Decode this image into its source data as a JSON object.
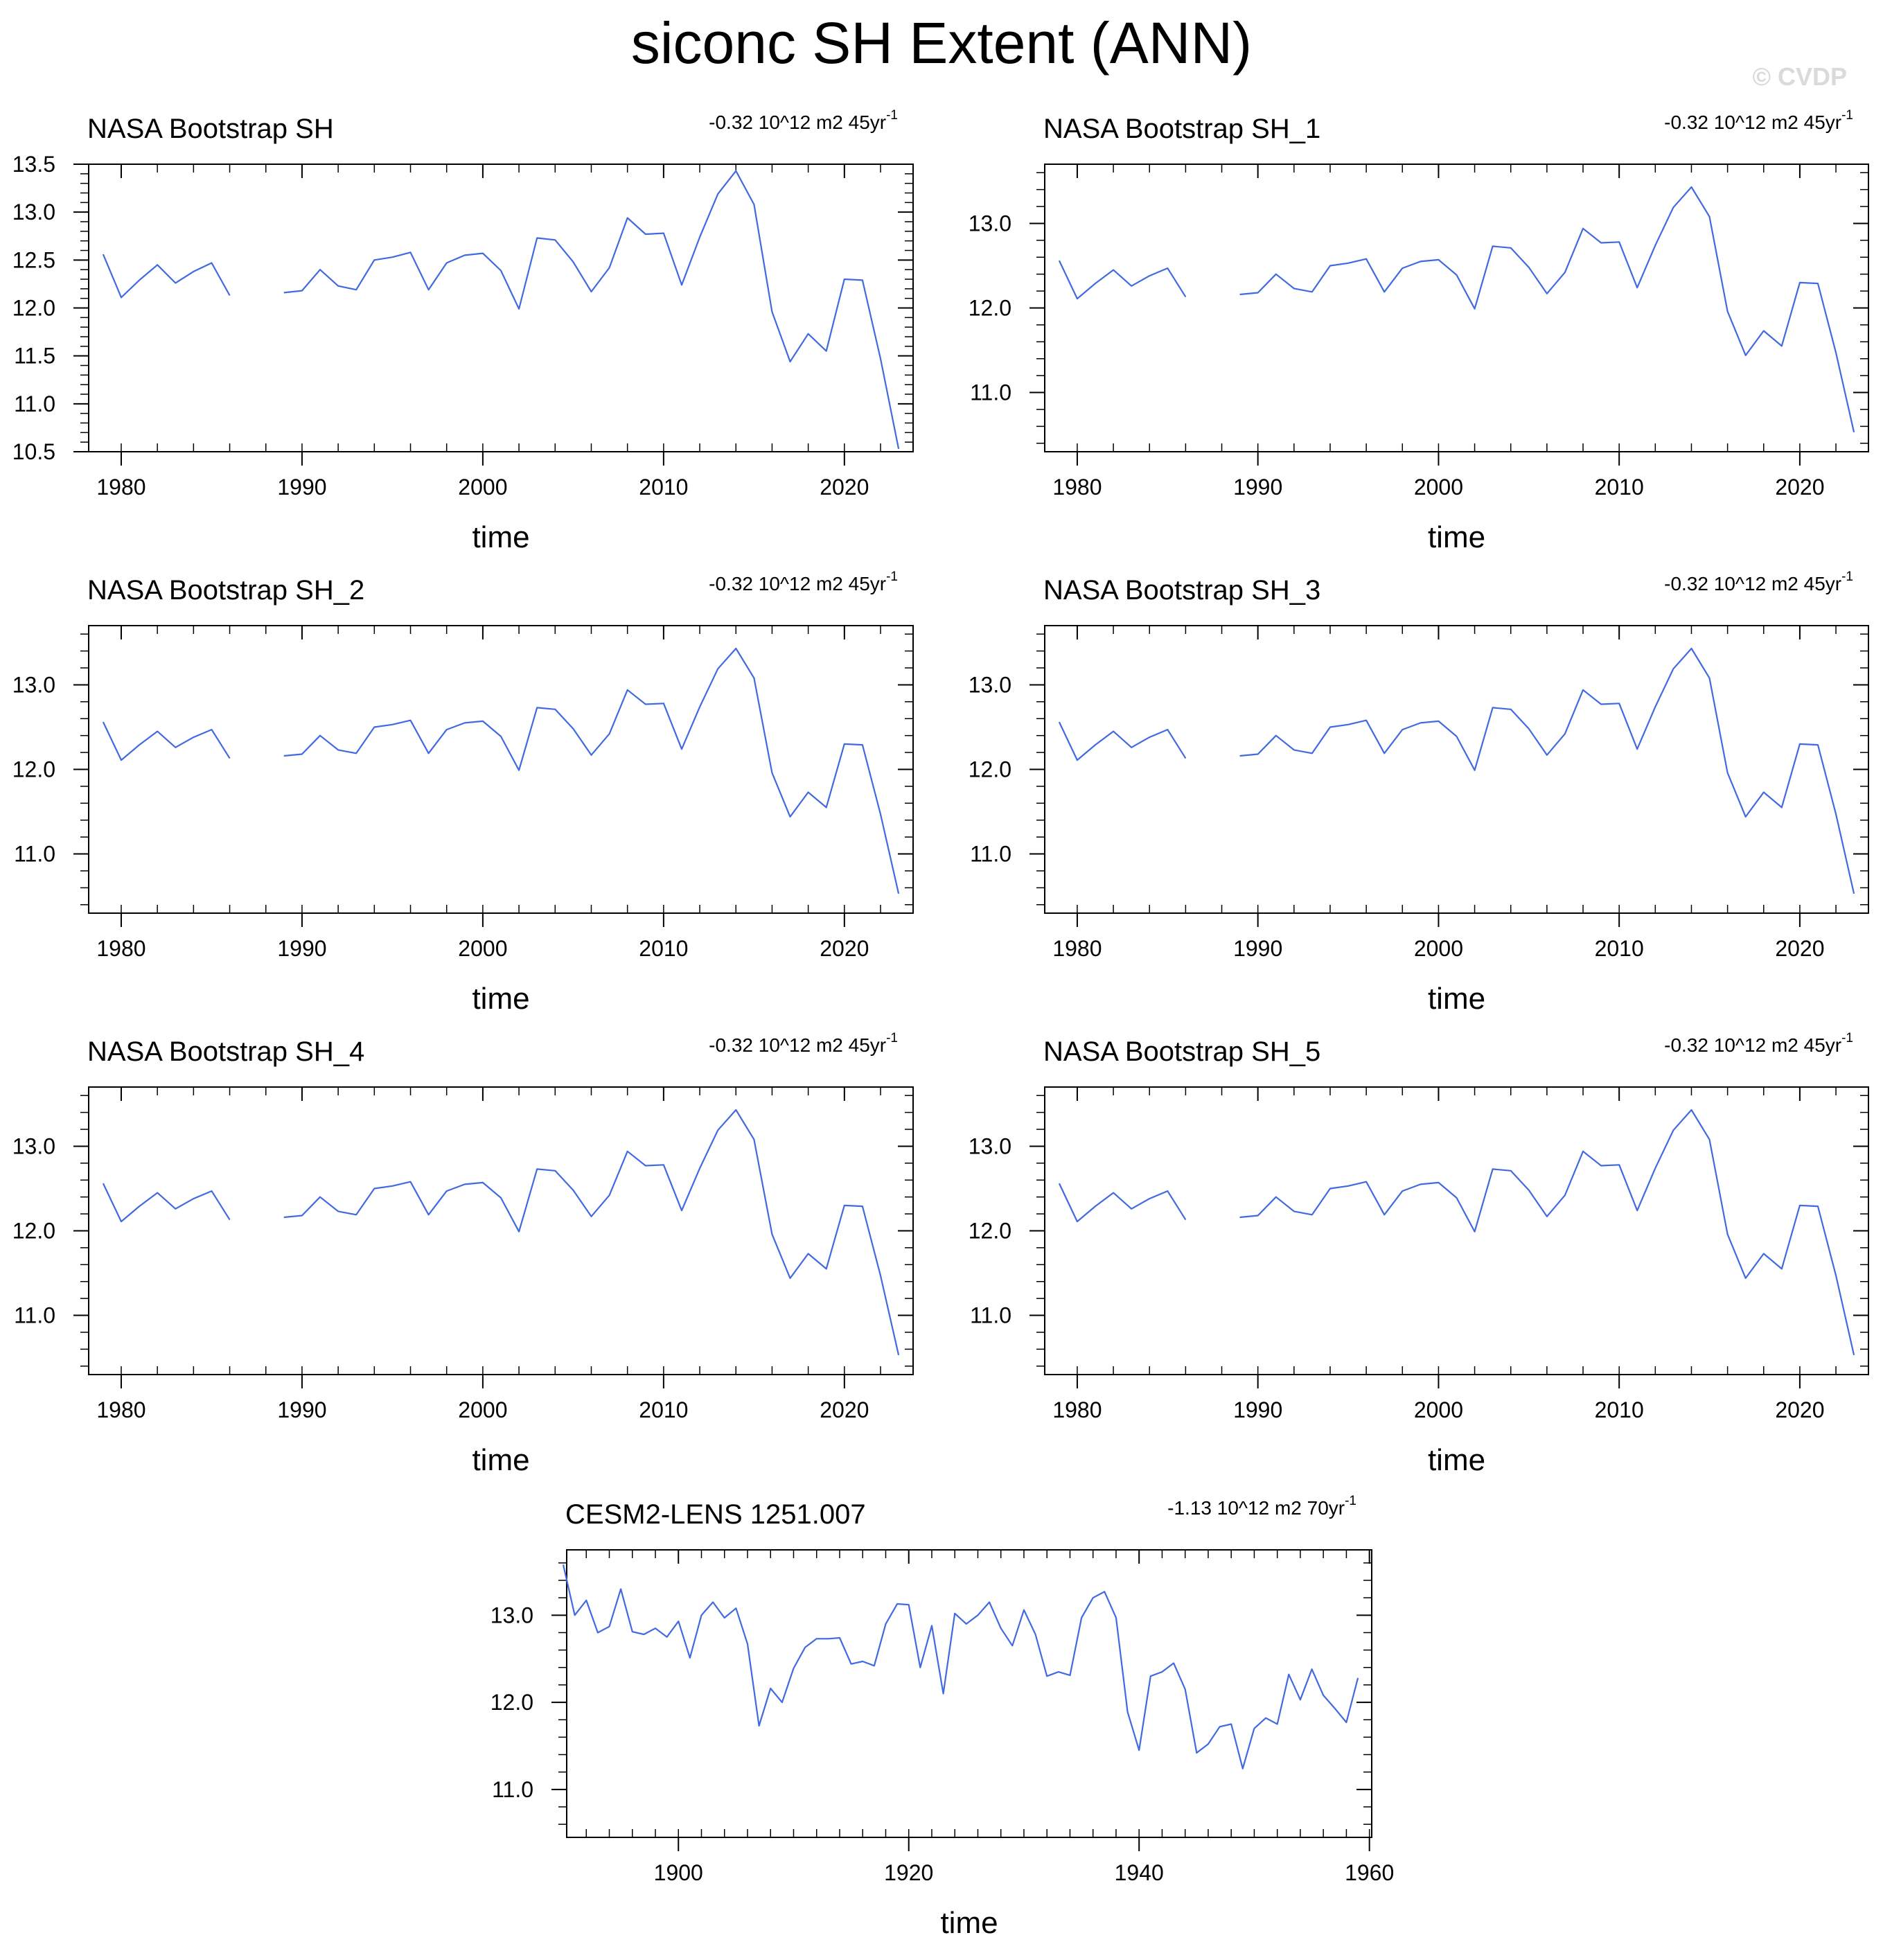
{
  "title": "siconc SH Extent (ANN)",
  "watermark": "© CVDP",
  "colors": {
    "line": "#4169e1",
    "frame": "#000000"
  },
  "chart_data": [
    {
      "type": "line",
      "title": "NASA Bootstrap SH",
      "trend_text": "-0.32 10^12 m2 45yr",
      "trend_sup": "-1",
      "xlabel": "time",
      "ylabel": "",
      "xlim": [
        1978.2,
        2023.8
      ],
      "ylim": [
        10.5,
        13.5
      ],
      "xticks": [
        1980,
        1990,
        2000,
        2010,
        2020
      ],
      "yticks": [
        10.5,
        11.0,
        11.5,
        12.0,
        12.5,
        13.0,
        13.5
      ],
      "ytick_labels": [
        "10.5",
        "11.0",
        "11.5",
        "12.0",
        "12.5",
        "13.0",
        "13.5"
      ],
      "x_minor": 2,
      "y_minor": 0.1,
      "x": [
        1979,
        1980,
        1981,
        1982,
        1983,
        1984,
        1985,
        1986,
        1987,
        1988,
        1989,
        1990,
        1991,
        1992,
        1993,
        1994,
        1995,
        1996,
        1997,
        1998,
        1999,
        2000,
        2001,
        2002,
        2003,
        2004,
        2005,
        2006,
        2007,
        2008,
        2009,
        2010,
        2011,
        2012,
        2013,
        2014,
        2015,
        2016,
        2017,
        2018,
        2019,
        2020,
        2021,
        2022,
        2023
      ],
      "y": [
        12.56,
        12.11,
        12.29,
        12.45,
        12.26,
        12.38,
        12.47,
        12.13,
        null,
        null,
        12.16,
        12.18,
        12.4,
        12.23,
        12.19,
        12.5,
        12.53,
        12.58,
        12.19,
        12.47,
        12.55,
        12.57,
        12.39,
        11.99,
        12.73,
        12.71,
        12.48,
        12.17,
        12.42,
        12.94,
        12.77,
        12.78,
        12.24,
        12.74,
        13.19,
        13.43,
        13.08,
        11.96,
        11.44,
        11.73,
        11.55,
        12.3,
        12.29,
        11.47,
        10.53
      ]
    },
    {
      "type": "line",
      "title": "NASA Bootstrap SH_1",
      "trend_text": "-0.32 10^12 m2 45yr",
      "trend_sup": "-1",
      "xlabel": "time",
      "ylabel": "",
      "xlim": [
        1978.2,
        2023.8
      ],
      "ylim": [
        10.3,
        13.7
      ],
      "xticks": [
        1980,
        1990,
        2000,
        2010,
        2020
      ],
      "yticks": [
        11.0,
        12.0,
        13.0
      ],
      "ytick_labels": [
        "11.0",
        "12.0",
        "13.0"
      ],
      "x_minor": 2,
      "y_minor": 0.2,
      "x": [
        1979,
        1980,
        1981,
        1982,
        1983,
        1984,
        1985,
        1986,
        1987,
        1988,
        1989,
        1990,
        1991,
        1992,
        1993,
        1994,
        1995,
        1996,
        1997,
        1998,
        1999,
        2000,
        2001,
        2002,
        2003,
        2004,
        2005,
        2006,
        2007,
        2008,
        2009,
        2010,
        2011,
        2012,
        2013,
        2014,
        2015,
        2016,
        2017,
        2018,
        2019,
        2020,
        2021,
        2022,
        2023
      ],
      "y": [
        12.56,
        12.11,
        12.29,
        12.45,
        12.26,
        12.38,
        12.47,
        12.13,
        null,
        null,
        12.16,
        12.18,
        12.4,
        12.23,
        12.19,
        12.5,
        12.53,
        12.58,
        12.19,
        12.47,
        12.55,
        12.57,
        12.39,
        11.99,
        12.73,
        12.71,
        12.48,
        12.17,
        12.42,
        12.94,
        12.77,
        12.78,
        12.24,
        12.74,
        13.19,
        13.43,
        13.08,
        11.96,
        11.44,
        11.73,
        11.55,
        12.3,
        12.29,
        11.47,
        10.53
      ]
    },
    {
      "type": "line",
      "title": "NASA Bootstrap SH_2",
      "trend_text": "-0.32 10^12 m2 45yr",
      "trend_sup": "-1",
      "xlabel": "time",
      "ylabel": "",
      "xlim": [
        1978.2,
        2023.8
      ],
      "ylim": [
        10.3,
        13.7
      ],
      "xticks": [
        1980,
        1990,
        2000,
        2010,
        2020
      ],
      "yticks": [
        11.0,
        12.0,
        13.0
      ],
      "ytick_labels": [
        "11.0",
        "12.0",
        "13.0"
      ],
      "x_minor": 2,
      "y_minor": 0.2,
      "x": [
        1979,
        1980,
        1981,
        1982,
        1983,
        1984,
        1985,
        1986,
        1987,
        1988,
        1989,
        1990,
        1991,
        1992,
        1993,
        1994,
        1995,
        1996,
        1997,
        1998,
        1999,
        2000,
        2001,
        2002,
        2003,
        2004,
        2005,
        2006,
        2007,
        2008,
        2009,
        2010,
        2011,
        2012,
        2013,
        2014,
        2015,
        2016,
        2017,
        2018,
        2019,
        2020,
        2021,
        2022,
        2023
      ],
      "y": [
        12.56,
        12.11,
        12.29,
        12.45,
        12.26,
        12.38,
        12.47,
        12.13,
        null,
        null,
        12.16,
        12.18,
        12.4,
        12.23,
        12.19,
        12.5,
        12.53,
        12.58,
        12.19,
        12.47,
        12.55,
        12.57,
        12.39,
        11.99,
        12.73,
        12.71,
        12.48,
        12.17,
        12.42,
        12.94,
        12.77,
        12.78,
        12.24,
        12.74,
        13.19,
        13.43,
        13.08,
        11.96,
        11.44,
        11.73,
        11.55,
        12.3,
        12.29,
        11.47,
        10.53
      ]
    },
    {
      "type": "line",
      "title": "NASA Bootstrap SH_3",
      "trend_text": "-0.32 10^12 m2 45yr",
      "trend_sup": "-1",
      "xlabel": "time",
      "ylabel": "",
      "xlim": [
        1978.2,
        2023.8
      ],
      "ylim": [
        10.3,
        13.7
      ],
      "xticks": [
        1980,
        1990,
        2000,
        2010,
        2020
      ],
      "yticks": [
        11.0,
        12.0,
        13.0
      ],
      "ytick_labels": [
        "11.0",
        "12.0",
        "13.0"
      ],
      "x_minor": 2,
      "y_minor": 0.2,
      "x": [
        1979,
        1980,
        1981,
        1982,
        1983,
        1984,
        1985,
        1986,
        1987,
        1988,
        1989,
        1990,
        1991,
        1992,
        1993,
        1994,
        1995,
        1996,
        1997,
        1998,
        1999,
        2000,
        2001,
        2002,
        2003,
        2004,
        2005,
        2006,
        2007,
        2008,
        2009,
        2010,
        2011,
        2012,
        2013,
        2014,
        2015,
        2016,
        2017,
        2018,
        2019,
        2020,
        2021,
        2022,
        2023
      ],
      "y": [
        12.56,
        12.11,
        12.29,
        12.45,
        12.26,
        12.38,
        12.47,
        12.13,
        null,
        null,
        12.16,
        12.18,
        12.4,
        12.23,
        12.19,
        12.5,
        12.53,
        12.58,
        12.19,
        12.47,
        12.55,
        12.57,
        12.39,
        11.99,
        12.73,
        12.71,
        12.48,
        12.17,
        12.42,
        12.94,
        12.77,
        12.78,
        12.24,
        12.74,
        13.19,
        13.43,
        13.08,
        11.96,
        11.44,
        11.73,
        11.55,
        12.3,
        12.29,
        11.47,
        10.53
      ]
    },
    {
      "type": "line",
      "title": "NASA Bootstrap SH_4",
      "trend_text": "-0.32 10^12 m2 45yr",
      "trend_sup": "-1",
      "xlabel": "time",
      "ylabel": "",
      "xlim": [
        1978.2,
        2023.8
      ],
      "ylim": [
        10.3,
        13.7
      ],
      "xticks": [
        1980,
        1990,
        2000,
        2010,
        2020
      ],
      "yticks": [
        11.0,
        12.0,
        13.0
      ],
      "ytick_labels": [
        "11.0",
        "12.0",
        "13.0"
      ],
      "x_minor": 2,
      "y_minor": 0.2,
      "x": [
        1979,
        1980,
        1981,
        1982,
        1983,
        1984,
        1985,
        1986,
        1987,
        1988,
        1989,
        1990,
        1991,
        1992,
        1993,
        1994,
        1995,
        1996,
        1997,
        1998,
        1999,
        2000,
        2001,
        2002,
        2003,
        2004,
        2005,
        2006,
        2007,
        2008,
        2009,
        2010,
        2011,
        2012,
        2013,
        2014,
        2015,
        2016,
        2017,
        2018,
        2019,
        2020,
        2021,
        2022,
        2023
      ],
      "y": [
        12.56,
        12.11,
        12.29,
        12.45,
        12.26,
        12.38,
        12.47,
        12.13,
        null,
        null,
        12.16,
        12.18,
        12.4,
        12.23,
        12.19,
        12.5,
        12.53,
        12.58,
        12.19,
        12.47,
        12.55,
        12.57,
        12.39,
        11.99,
        12.73,
        12.71,
        12.48,
        12.17,
        12.42,
        12.94,
        12.77,
        12.78,
        12.24,
        12.74,
        13.19,
        13.43,
        13.08,
        11.96,
        11.44,
        11.73,
        11.55,
        12.3,
        12.29,
        11.47,
        10.53
      ]
    },
    {
      "type": "line",
      "title": "NASA Bootstrap SH_5",
      "trend_text": "-0.32 10^12 m2 45yr",
      "trend_sup": "-1",
      "xlabel": "time",
      "ylabel": "",
      "xlim": [
        1978.2,
        2023.8
      ],
      "ylim": [
        10.3,
        13.7
      ],
      "xticks": [
        1980,
        1990,
        2000,
        2010,
        2020
      ],
      "yticks": [
        11.0,
        12.0,
        13.0
      ],
      "ytick_labels": [
        "11.0",
        "12.0",
        "13.0"
      ],
      "x_minor": 2,
      "y_minor": 0.2,
      "x": [
        1979,
        1980,
        1981,
        1982,
        1983,
        1984,
        1985,
        1986,
        1987,
        1988,
        1989,
        1990,
        1991,
        1992,
        1993,
        1994,
        1995,
        1996,
        1997,
        1998,
        1999,
        2000,
        2001,
        2002,
        2003,
        2004,
        2005,
        2006,
        2007,
        2008,
        2009,
        2010,
        2011,
        2012,
        2013,
        2014,
        2015,
        2016,
        2017,
        2018,
        2019,
        2020,
        2021,
        2022,
        2023
      ],
      "y": [
        12.56,
        12.11,
        12.29,
        12.45,
        12.26,
        12.38,
        12.47,
        12.13,
        null,
        null,
        12.16,
        12.18,
        12.4,
        12.23,
        12.19,
        12.5,
        12.53,
        12.58,
        12.19,
        12.47,
        12.55,
        12.57,
        12.39,
        11.99,
        12.73,
        12.71,
        12.48,
        12.17,
        12.42,
        12.94,
        12.77,
        12.78,
        12.24,
        12.74,
        13.19,
        13.43,
        13.08,
        11.96,
        11.44,
        11.73,
        11.55,
        12.3,
        12.29,
        11.47,
        10.53
      ]
    },
    {
      "type": "line",
      "title": "CESM2-LENS 1251.007",
      "trend_text": "-1.13 10^12 m2 70yr",
      "trend_sup": "-1",
      "xlabel": "time",
      "ylabel": "",
      "xlim": [
        1890.3,
        1960.2
      ],
      "ylim": [
        10.45,
        13.75
      ],
      "xticks": [
        1900,
        1920,
        1940,
        1960
      ],
      "yticks": [
        11.0,
        12.0,
        13.0
      ],
      "ytick_labels": [
        "11.0",
        "12.0",
        "13.0"
      ],
      "x_minor": 2,
      "y_minor": 0.2,
      "x": [
        1890,
        1891,
        1892,
        1893,
        1894,
        1895,
        1896,
        1897,
        1898,
        1899,
        1900,
        1901,
        1902,
        1903,
        1904,
        1905,
        1906,
        1907,
        1908,
        1909,
        1910,
        1911,
        1912,
        1913,
        1914,
        1915,
        1916,
        1917,
        1918,
        1919,
        1920,
        1921,
        1922,
        1923,
        1924,
        1925,
        1926,
        1927,
        1928,
        1929,
        1930,
        1931,
        1932,
        1933,
        1934,
        1935,
        1936,
        1937,
        1938,
        1939,
        1940,
        1941,
        1942,
        1943,
        1944,
        1945,
        1946,
        1947,
        1948,
        1949,
        1950,
        1951,
        1952,
        1953,
        1954,
        1955,
        1956,
        1957,
        1958,
        1959,
        1960
      ],
      "y": [
        13.58,
        13.0,
        13.17,
        12.8,
        12.87,
        13.3,
        12.81,
        12.78,
        12.85,
        12.75,
        12.93,
        12.51,
        13.0,
        13.15,
        12.97,
        13.08,
        12.67,
        11.73,
        12.16,
        12.0,
        12.39,
        12.63,
        12.73,
        12.73,
        12.74,
        12.44,
        12.47,
        12.42,
        12.9,
        13.13,
        13.12,
        12.4,
        12.88,
        12.1,
        13.02,
        12.9,
        13.0,
        13.15,
        12.85,
        12.65,
        13.06,
        12.78,
        12.3,
        12.35,
        12.31,
        12.97,
        13.2,
        13.27,
        12.97,
        11.89,
        11.45,
        12.3,
        12.35,
        12.45,
        12.15,
        11.42,
        11.52,
        11.72,
        11.75,
        11.24,
        11.7,
        11.82,
        11.75,
        12.32,
        12.03,
        12.38,
        12.08,
        11.93,
        11.77,
        12.28,
        null
      ]
    }
  ]
}
